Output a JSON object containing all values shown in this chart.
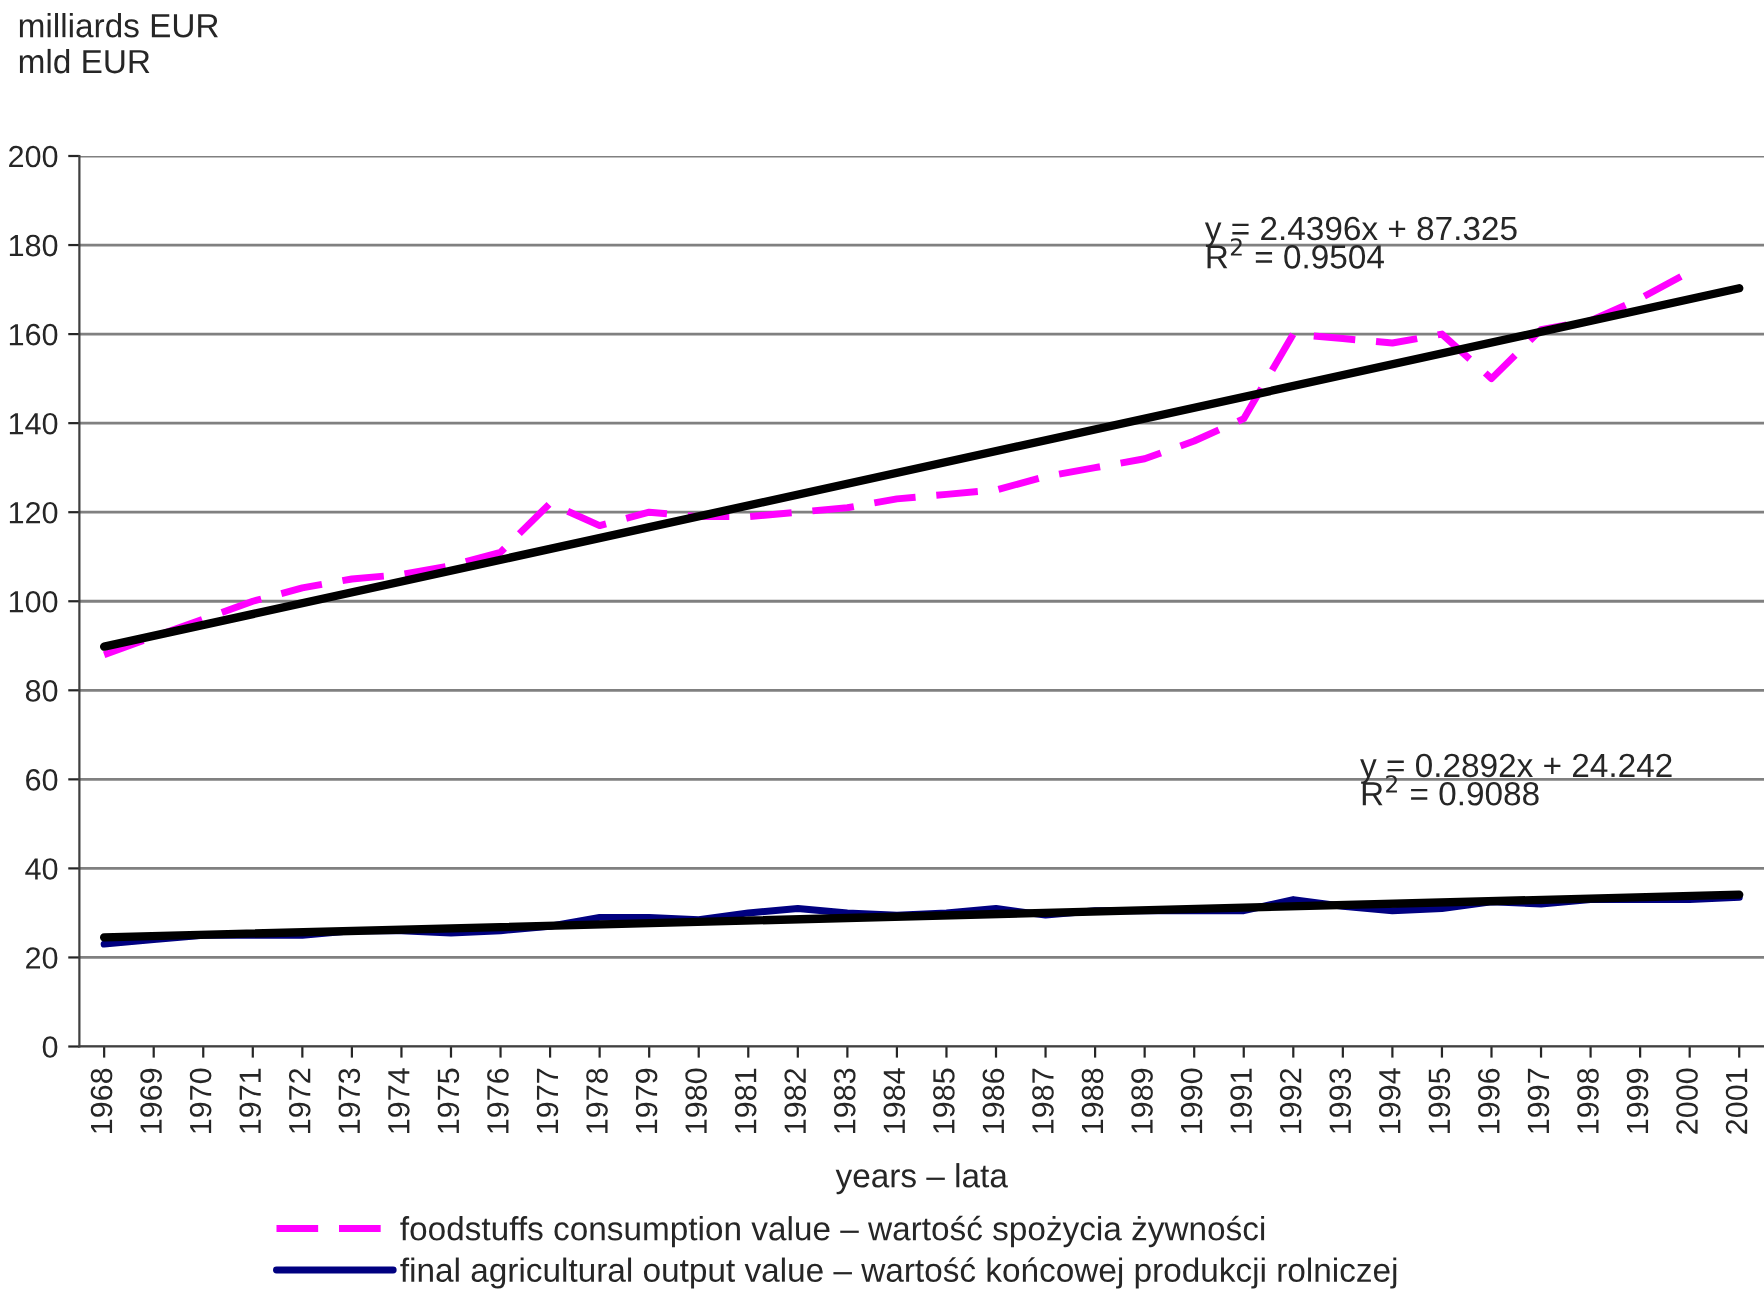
{
  "chart_data": {
    "type": "line",
    "ylabel": "milliards EUR\nmld EUR",
    "xlabel": "years – lata",
    "categories": [
      "1968",
      "1969",
      "1970",
      "1971",
      "1972",
      "1973",
      "1974",
      "1975",
      "1976",
      "1977",
      "1978",
      "1979",
      "1980",
      "1981",
      "1982",
      "1983",
      "1984",
      "1985",
      "1986",
      "1987",
      "1988",
      "1989",
      "1990",
      "1991",
      "1992",
      "1993",
      "1994",
      "1995",
      "1996",
      "1997",
      "1998",
      "1999",
      "2000",
      "2001"
    ],
    "series": [
      {
        "name": "foodstuffs consumption value – wartość spożycia żywności",
        "color": "#ff00ff",
        "line_style": "dashed",
        "values": [
          88,
          92,
          96,
          100,
          103,
          105,
          106,
          108,
          111,
          122,
          117,
          120,
          119,
          119,
          120,
          121,
          123,
          124,
          125,
          128,
          130,
          132,
          136,
          141,
          160,
          159,
          158,
          160,
          150,
          161,
          163,
          168,
          174,
          null
        ]
      },
      {
        "name": "final agricultural output value – wartość końcowej produkcji rolniczej",
        "color": "#000080",
        "line_style": "solid",
        "values": [
          23,
          24,
          25,
          25,
          25,
          26,
          26,
          25.5,
          26,
          27,
          29,
          29,
          28.5,
          30,
          31,
          30,
          29.5,
          30,
          31,
          29.5,
          30.5,
          30.5,
          30.5,
          30.5,
          33,
          31.5,
          30.5,
          31,
          32.5,
          32,
          33,
          33,
          33,
          33.5
        ]
      },
      {
        "type": "line",
        "color": "#000000",
        "line_style": "solid",
        "values": [
          89.8,
          null,
          null,
          null,
          null,
          null,
          null,
          null,
          null,
          null,
          null,
          null,
          null,
          null,
          null,
          null,
          null,
          null,
          null,
          null,
          null,
          null,
          null,
          null,
          null,
          null,
          null,
          null,
          null,
          null,
          null,
          null,
          null,
          170.3
        ]
      },
      {
        "type": "line",
        "color": "#000000",
        "line_style": "solid",
        "values": [
          24.5,
          null,
          null,
          null,
          null,
          null,
          null,
          null,
          null,
          null,
          null,
          null,
          null,
          null,
          null,
          null,
          null,
          null,
          null,
          null,
          null,
          null,
          null,
          null,
          null,
          null,
          null,
          null,
          null,
          null,
          null,
          null,
          null,
          34.1
        ]
      }
    ],
    "ylim": [
      0,
      200
    ],
    "yticks": [
      0,
      20,
      40,
      60,
      80,
      100,
      120,
      140,
      160,
      180,
      200
    ],
    "grid": "y",
    "legend": "bottom",
    "marker": "none",
    "annotations": [
      "y = 2.4396x + 87.325",
      "R$^{2}$ = 0.9504",
      "y = 0.2892x + 24.242",
      "R$^{2}$ = 0.9088"
    ]
  }
}
